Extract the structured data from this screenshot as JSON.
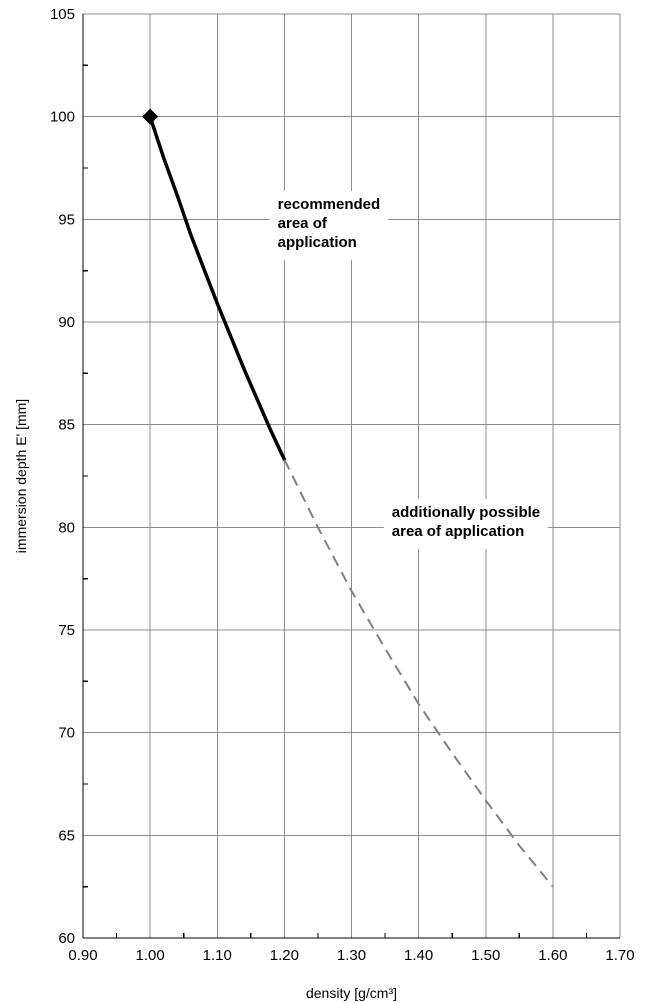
{
  "chart_data": {
    "type": "line",
    "xlabel": "density [g/cm³]",
    "ylabel": "immersion depth E' [mm]",
    "xlim": [
      0.9,
      1.7
    ],
    "ylim": [
      60,
      105
    ],
    "xticks": [
      "0.90",
      "1.00",
      "1.10",
      "1.20",
      "1.30",
      "1.40",
      "1.50",
      "1.60",
      "1.70"
    ],
    "yticks": [
      "60",
      "65",
      "70",
      "75",
      "80",
      "85",
      "90",
      "95",
      "100",
      "105"
    ],
    "grid": true,
    "series": [
      {
        "style": "solid",
        "color": "#000000",
        "x": [
          1.0,
          1.02,
          1.04,
          1.06,
          1.08,
          1.1,
          1.12,
          1.14,
          1.16,
          1.18,
          1.2
        ],
        "y": [
          100.0,
          98.0,
          96.2,
          94.3,
          92.6,
          90.9,
          89.3,
          87.7,
          86.2,
          84.7,
          83.3
        ]
      },
      {
        "style": "dashed",
        "color": "#808080",
        "x": [
          1.2,
          1.25,
          1.3,
          1.35,
          1.4,
          1.45,
          1.5,
          1.55,
          1.6
        ],
        "y": [
          83.3,
          80.0,
          76.9,
          74.1,
          71.4,
          69.0,
          66.7,
          64.5,
          62.5
        ]
      }
    ],
    "marker": {
      "shape": "diamond",
      "x": 1.0,
      "y": 100.0,
      "color": "#000000"
    },
    "annotations": [
      {
        "lines": [
          "recommended",
          "area of",
          "application"
        ],
        "x": 1.19,
        "y": 95.5
      },
      {
        "lines": [
          "additionally possible",
          "area of application"
        ],
        "x": 1.36,
        "y": 80.5
      }
    ]
  }
}
